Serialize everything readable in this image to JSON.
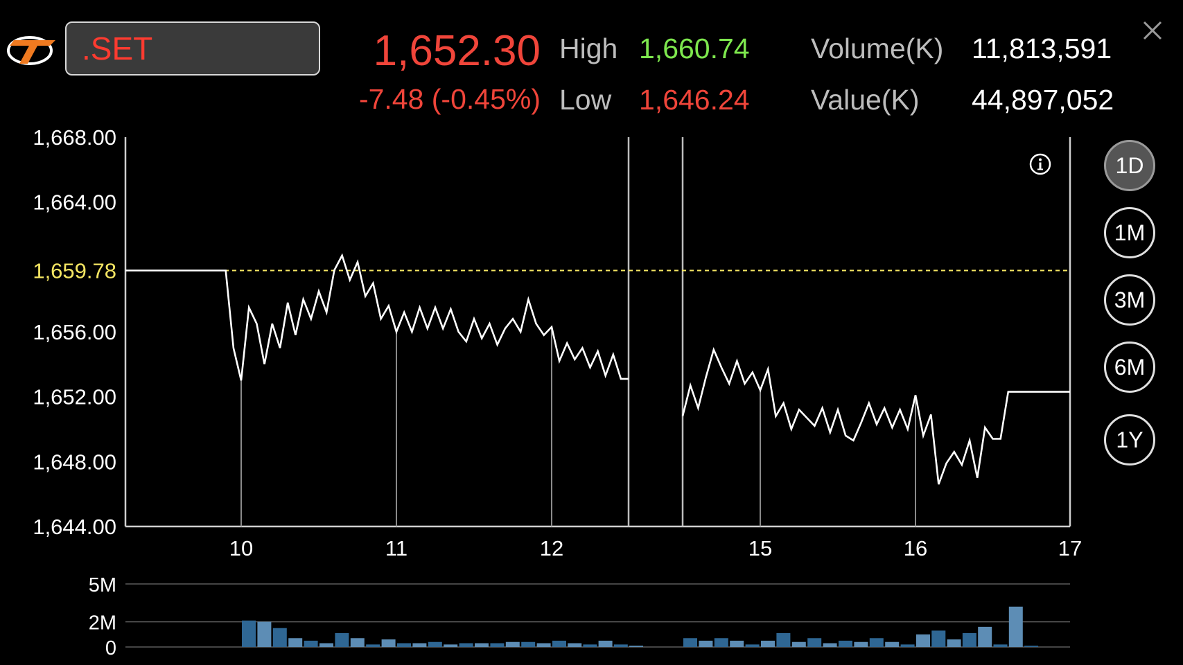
{
  "header": {
    "symbol": ".SET",
    "last_price": "1,652.30",
    "change": "-7.48 (-0.45%)",
    "high_label": "High",
    "high_value": "1,660.74",
    "low_label": "Low",
    "low_value": "1,646.24",
    "volume_label": "Volume(K)",
    "volume_value": "11,813,591",
    "value_label": "Value(K)",
    "value_value": "44,897,052"
  },
  "periods": [
    "1D",
    "1M",
    "3M",
    "6M",
    "1Y"
  ],
  "active_period": "1D",
  "colors": {
    "price_line": "#ffffff",
    "reference_line": "#f5e663",
    "volume_bar": "#2f6794",
    "volume_bar_alt": "#5d8db5",
    "up": "#7ee84e",
    "down": "#f0453a"
  },
  "chart_data": [
    {
      "type": "line",
      "title": "",
      "xlabel": "",
      "ylabel": "",
      "y_ticks": [
        "1,668.00",
        "1,664.00",
        "1,659.78",
        "1,656.00",
        "1,652.00",
        "1,648.00",
        "1,644.00"
      ],
      "ylim": [
        1644,
        1668
      ],
      "reference_value": 1659.78,
      "reference_label": "1,659.78",
      "x_ticks": [
        "10",
        "11",
        "12",
        "15",
        "16",
        "17"
      ],
      "x_tick_hours": [
        10,
        11,
        12,
        15,
        16,
        17
      ],
      "xlim": [
        9.25,
        17.0
      ],
      "session_gap": [
        12.5,
        14.5
      ],
      "series": [
        {
          "x": [
            9.25,
            9.9,
            9.95,
            10.0,
            10.05,
            10.1,
            10.15,
            10.2,
            10.25,
            10.3,
            10.35,
            10.4,
            10.45,
            10.5,
            10.55,
            10.6,
            10.65,
            10.7,
            10.75,
            10.8,
            10.85,
            10.9,
            10.95,
            11.0,
            11.05,
            11.1,
            11.15,
            11.2,
            11.25,
            11.3,
            11.35,
            11.4,
            11.45,
            11.5,
            11.55,
            11.6,
            11.65,
            11.7,
            11.75,
            11.8,
            11.85,
            11.9,
            11.95,
            12.0,
            12.05,
            12.1,
            12.15,
            12.2,
            12.25,
            12.3,
            12.35,
            12.4,
            12.45,
            12.5
          ],
          "values": [
            1659.78,
            1659.78,
            1655.0,
            1653.0,
            1657.5,
            1656.5,
            1654.0,
            1656.5,
            1655.0,
            1657.8,
            1655.8,
            1658.0,
            1656.8,
            1658.5,
            1657.2,
            1659.8,
            1660.7,
            1659.2,
            1660.3,
            1658.2,
            1659.0,
            1656.8,
            1657.6,
            1656.0,
            1657.2,
            1656.0,
            1657.5,
            1656.2,
            1657.5,
            1656.2,
            1657.4,
            1656.0,
            1655.4,
            1656.8,
            1655.6,
            1656.5,
            1655.2,
            1656.2,
            1656.8,
            1656.0,
            1658.0,
            1656.5,
            1655.8,
            1656.3,
            1654.2,
            1655.3,
            1654.3,
            1655.0,
            1653.8,
            1654.8,
            1653.3,
            1654.6,
            1653.1,
            1653.1
          ]
        },
        {
          "x": [
            14.5,
            14.55,
            14.6,
            14.65,
            14.7,
            14.75,
            14.8,
            14.85,
            14.9,
            14.95,
            15.0,
            15.05,
            15.1,
            15.15,
            15.2,
            15.25,
            15.3,
            15.35,
            15.4,
            15.45,
            15.5,
            15.55,
            15.6,
            15.65,
            15.7,
            15.75,
            15.8,
            15.85,
            15.9,
            15.95,
            16.0,
            16.05,
            16.1,
            16.15,
            16.2,
            16.25,
            16.3,
            16.35,
            16.4,
            16.45,
            16.5,
            16.55,
            16.6,
            16.65,
            16.75,
            16.8,
            17.0
          ],
          "values": [
            1650.8,
            1652.7,
            1651.3,
            1653.2,
            1654.9,
            1653.8,
            1652.8,
            1654.2,
            1652.8,
            1653.5,
            1652.4,
            1653.7,
            1650.8,
            1651.6,
            1650.0,
            1651.2,
            1650.7,
            1650.2,
            1651.3,
            1649.8,
            1651.2,
            1649.6,
            1649.3,
            1650.4,
            1651.6,
            1650.3,
            1651.3,
            1650.1,
            1651.2,
            1650.0,
            1652.1,
            1649.6,
            1650.9,
            1646.6,
            1647.9,
            1648.6,
            1647.8,
            1649.3,
            1647.0,
            1650.1,
            1649.4,
            1649.4,
            1652.3,
            1652.3,
            1652.3,
            1652.3,
            1652.3
          ]
        }
      ]
    },
    {
      "type": "bar",
      "title": "",
      "y_ticks": [
        "5M",
        "2M",
        "0"
      ],
      "ylim": [
        0,
        5
      ],
      "unit": "M",
      "series": [
        {
          "x": [
            10.0,
            10.1,
            10.2,
            10.3,
            10.4,
            10.5,
            10.6,
            10.7,
            10.8,
            10.9,
            11.0,
            11.1,
            11.2,
            11.3,
            11.4,
            11.5,
            11.6,
            11.7,
            11.8,
            11.9,
            12.0,
            12.1,
            12.2,
            12.3,
            12.4,
            12.5
          ],
          "values": [
            2.1,
            2.0,
            1.5,
            0.7,
            0.5,
            0.3,
            1.1,
            0.7,
            0.2,
            0.6,
            0.3,
            0.3,
            0.4,
            0.2,
            0.3,
            0.3,
            0.3,
            0.4,
            0.4,
            0.3,
            0.5,
            0.3,
            0.2,
            0.5,
            0.2,
            0.1
          ]
        },
        {
          "x": [
            14.5,
            14.6,
            14.7,
            14.8,
            14.9,
            15.0,
            15.1,
            15.2,
            15.3,
            15.4,
            15.5,
            15.6,
            15.7,
            15.8,
            15.9,
            16.0,
            16.1,
            16.2,
            16.3,
            16.4,
            16.5,
            16.6,
            16.7,
            16.8
          ],
          "values": [
            0.7,
            0.5,
            0.7,
            0.5,
            0.2,
            0.5,
            1.1,
            0.4,
            0.7,
            0.3,
            0.5,
            0.4,
            0.7,
            0.4,
            0.2,
            1.0,
            1.3,
            0.6,
            1.1,
            1.6,
            0.2,
            3.2,
            0.1,
            0.0
          ]
        }
      ]
    }
  ]
}
